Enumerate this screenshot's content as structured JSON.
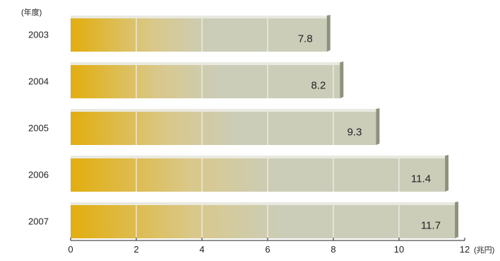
{
  "chart_data": {
    "type": "bar",
    "orientation": "horizontal",
    "title": "",
    "ylabel": "(年度)",
    "xlabel": "(兆円)",
    "categories": [
      "2003",
      "2004",
      "2005",
      "2006",
      "2007"
    ],
    "values": [
      7.8,
      8.2,
      9.3,
      11.4,
      11.7
    ],
    "value_labels": [
      "7.8",
      "8.2",
      "9.3",
      "11.4",
      "11.7"
    ],
    "xlim": [
      0,
      12
    ],
    "xticks": [
      0,
      2,
      4,
      6,
      8,
      10,
      12
    ],
    "xtick_labels": [
      "0",
      "2",
      "4",
      "6",
      "8",
      "10",
      "12"
    ],
    "grid": true,
    "legend": "none",
    "colors": {
      "bar_start": "#E2AE0E",
      "bar_mid": "#D9C88A",
      "bar_end": "#CBCDB9",
      "bar_top": "#E9E9E0",
      "bar_side": "#8E917D",
      "grid_line": "#F2F2EC",
      "axis": "#222222",
      "text": "#222222"
    }
  }
}
